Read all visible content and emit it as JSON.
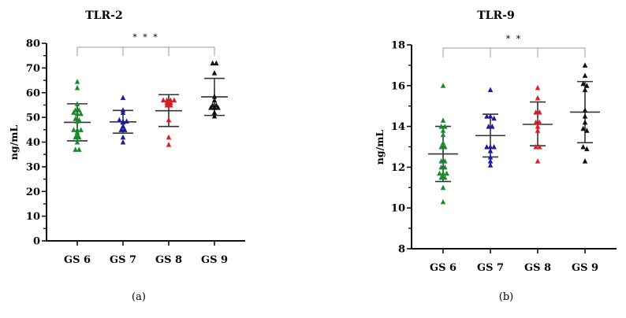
{
  "figure": {
    "panels": [
      "(a)",
      "(b)"
    ]
  },
  "colors": {
    "GS 6": "#1a8a2e",
    "GS 7": "#1c1c9c",
    "GS 8": "#e01b24",
    "GS 9": "#111111",
    "axis": "#111111",
    "bracket": "#9a9a9a",
    "errorbar": "#333333"
  },
  "chart_data": [
    {
      "type": "scatter",
      "subtype": "dot plot with mean ± SD",
      "panel_label": "(a)",
      "title": "TLR-2",
      "xlabel": "",
      "ylabel": "ng/mL",
      "ylim": [
        0,
        80
      ],
      "yticks": [
        0,
        10,
        20,
        30,
        40,
        50,
        60,
        70,
        80
      ],
      "categories": [
        "GS 6",
        "GS 7",
        "GS 8",
        "GS 9"
      ],
      "marker": "triangle",
      "grid": false,
      "legend": "none",
      "significance": {
        "from": "GS 6",
        "to": "GS 9",
        "label": "* * *",
        "drops_at": [
          "GS 6",
          "GS 7",
          "GS 8",
          "GS 9"
        ]
      },
      "series": [
        {
          "name": "GS 6",
          "mean": 48.0,
          "sd_low": 40.5,
          "sd_high": 55.5,
          "values": [
            64.5,
            62.0,
            55.5,
            53.0,
            53.0,
            51.5,
            51.5,
            52.0,
            49.5,
            49.0,
            48.5,
            45.0,
            45.0,
            45.0,
            44.0,
            43.0,
            42.0,
            42.0,
            40.0,
            37.0,
            37.0
          ]
        },
        {
          "name": "GS 7",
          "mean": 48.2,
          "sd_low": 43.6,
          "sd_high": 52.8,
          "values": [
            58.0,
            53.0,
            52.0,
            49.0,
            48.5,
            48.5,
            48.0,
            46.5,
            45.0,
            45.0,
            42.0,
            40.0
          ]
        },
        {
          "name": "GS 8",
          "mean": 52.7,
          "sd_low": 46.3,
          "sd_high": 59.2,
          "values": [
            57.0,
            57.0,
            57.0,
            57.0,
            56.0,
            56.0,
            55.0,
            55.0,
            49.0,
            42.0,
            39.0
          ]
        },
        {
          "name": "GS 9",
          "mean": 58.3,
          "sd_low": 50.8,
          "sd_high": 65.8,
          "values": [
            72.0,
            72.0,
            68.0,
            58.5,
            57.0,
            55.0,
            55.0,
            54.0,
            54.0,
            54.0,
            52.0,
            50.5
          ]
        }
      ]
    },
    {
      "type": "scatter",
      "subtype": "dot plot with mean ± SD",
      "panel_label": "(b)",
      "title": "TLR-9",
      "xlabel": "",
      "ylabel": "ng/mL",
      "ylim": [
        8,
        18
      ],
      "yticks": [
        8,
        10,
        12,
        14,
        16,
        18
      ],
      "categories": [
        "GS 6",
        "GS 7",
        "GS 8",
        "GS 9"
      ],
      "marker": "triangle",
      "grid": false,
      "legend": "none",
      "significance": {
        "from": "GS 6",
        "to": "GS 9",
        "label": "* *",
        "drops_at": [
          "GS 6",
          "GS 7",
          "GS 8",
          "GS 9"
        ]
      },
      "series": [
        {
          "name": "GS 6",
          "mean": 12.65,
          "sd_low": 11.3,
          "sd_high": 14.0,
          "values": [
            16.0,
            14.3,
            14.0,
            14.0,
            13.8,
            13.6,
            13.2,
            13.0,
            13.0,
            12.3,
            12.3,
            12.0,
            12.0,
            11.7,
            11.7,
            11.7,
            11.5,
            11.5,
            11.0,
            10.3
          ]
        },
        {
          "name": "GS 7",
          "mean": 13.55,
          "sd_low": 12.5,
          "sd_high": 14.6,
          "values": [
            15.8,
            14.5,
            14.5,
            14.4,
            14.0,
            14.0,
            13.0,
            13.0,
            13.0,
            12.8,
            12.5,
            12.3,
            12.1
          ]
        },
        {
          "name": "GS 8",
          "mean": 14.1,
          "sd_low": 13.05,
          "sd_high": 15.2,
          "values": [
            15.9,
            15.4,
            14.7,
            14.7,
            14.2,
            14.2,
            14.0,
            13.8,
            13.0,
            13.0,
            12.3
          ]
        },
        {
          "name": "GS 9",
          "mean": 14.7,
          "sd_low": 13.2,
          "sd_high": 16.2,
          "values": [
            17.0,
            16.5,
            16.1,
            16.0,
            15.8,
            14.8,
            14.5,
            14.2,
            13.9,
            13.8,
            13.0,
            12.9,
            12.3
          ]
        }
      ]
    }
  ]
}
